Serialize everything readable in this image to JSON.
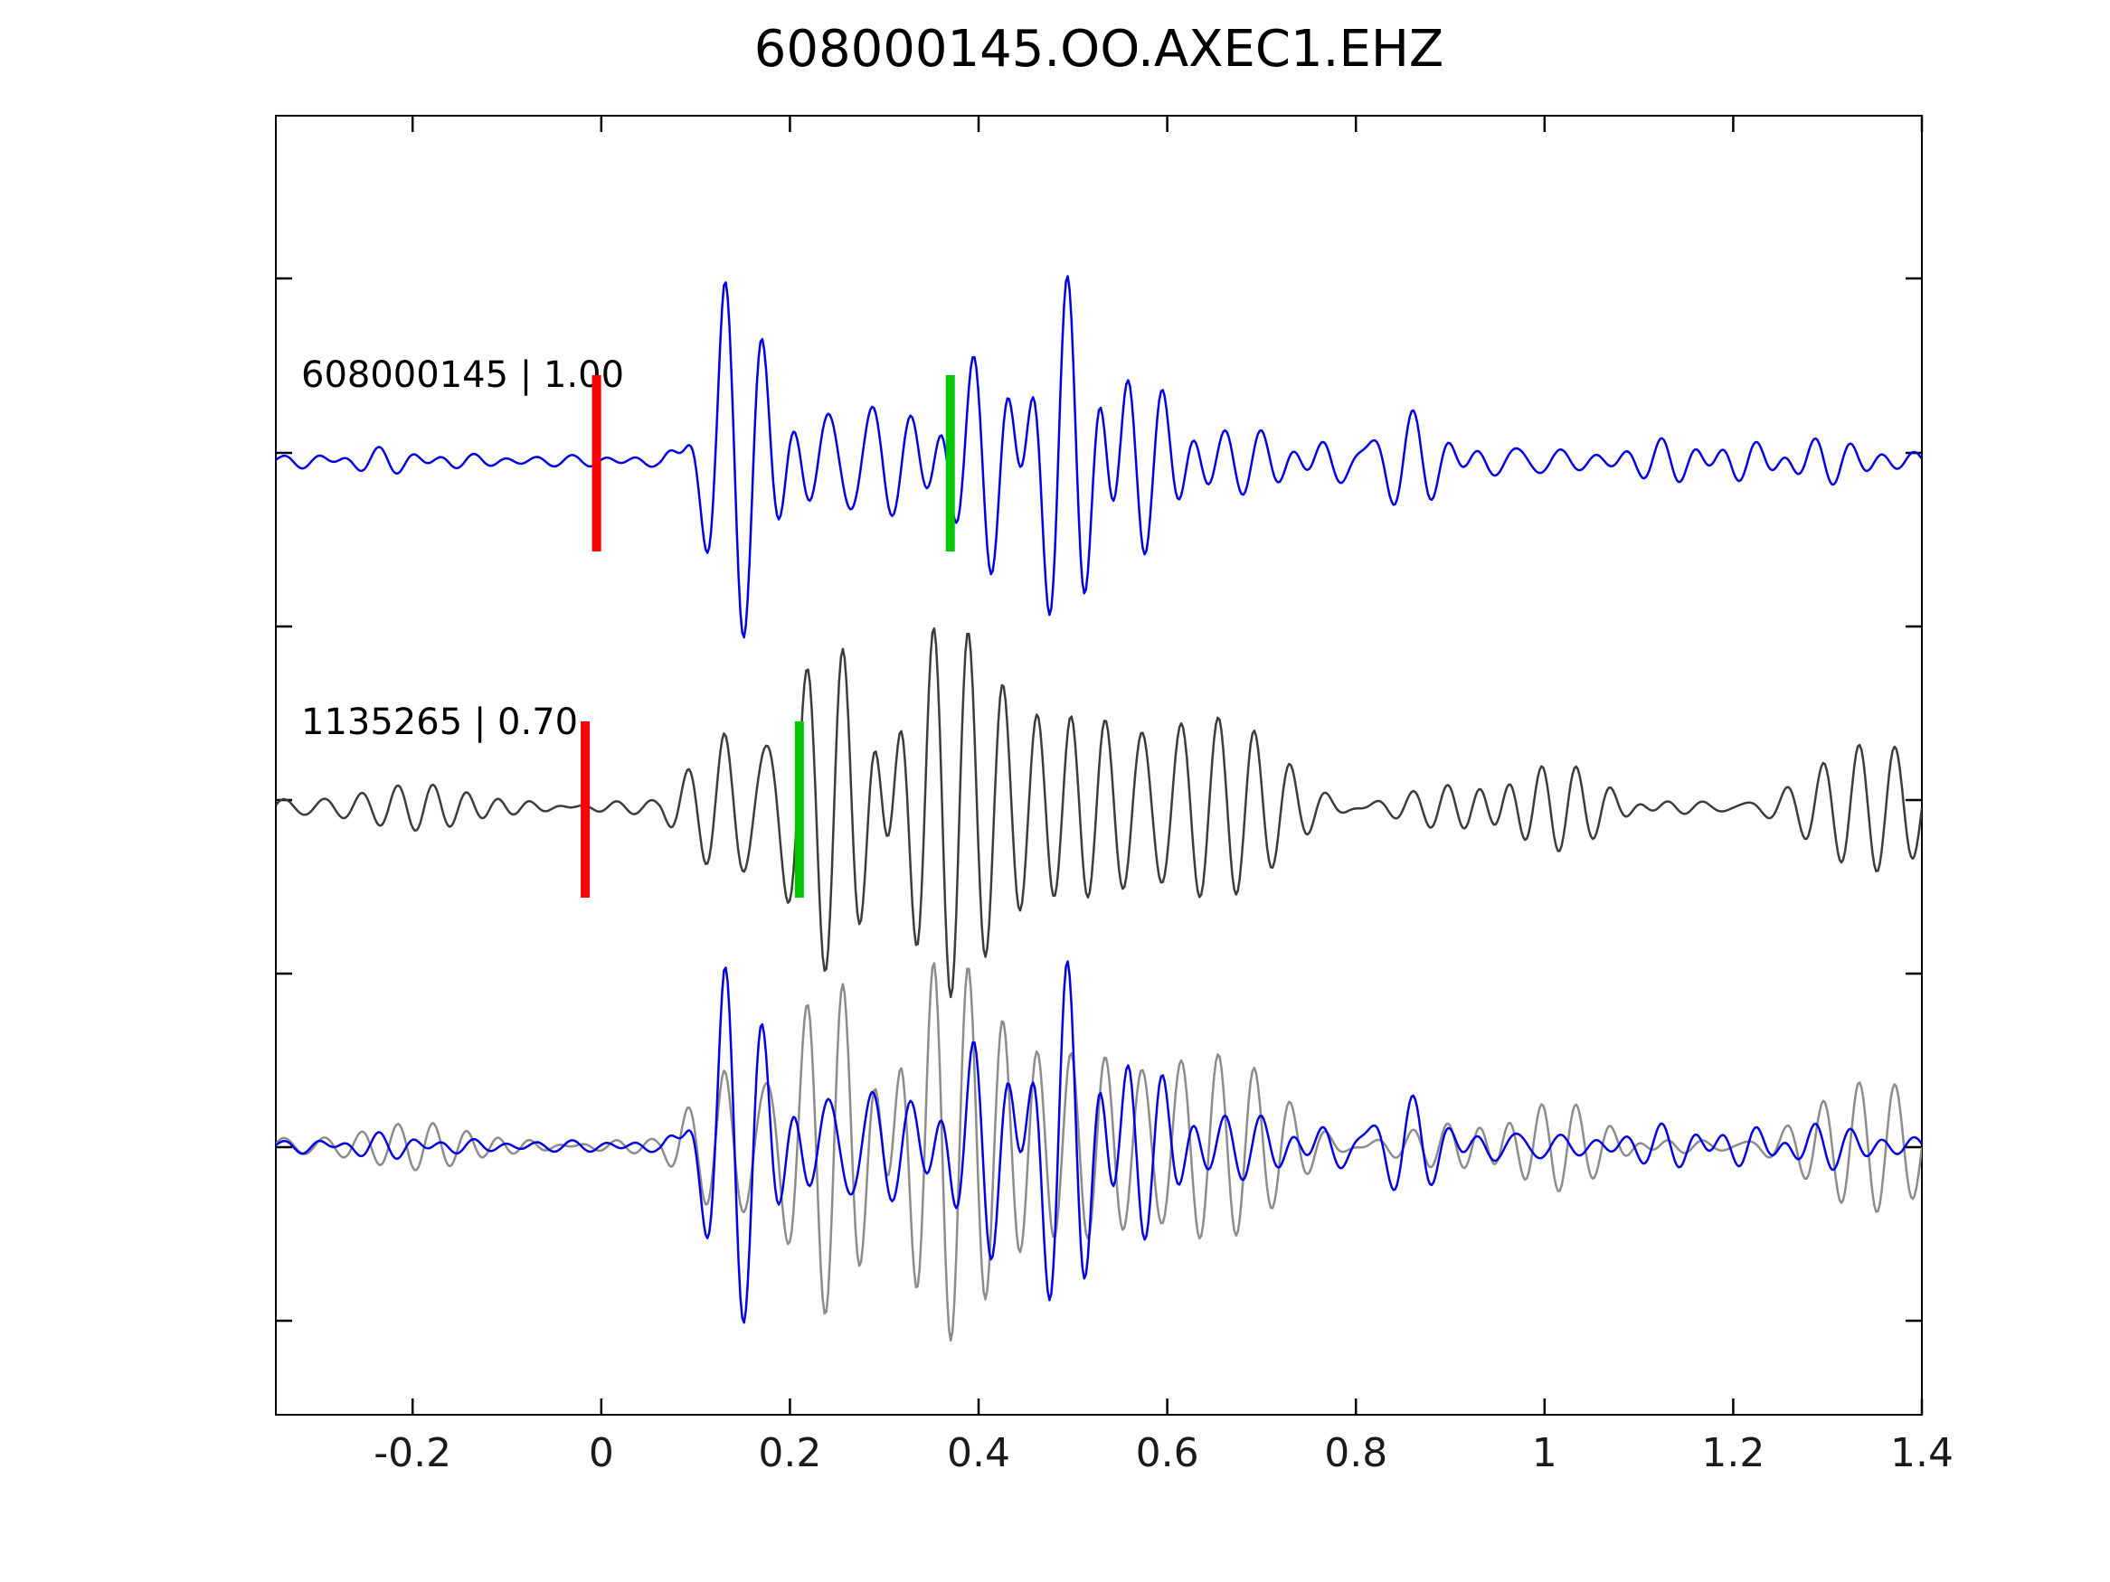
{
  "title": "608000145.OO.AXEC1.EHZ",
  "chart_data": {
    "type": "line",
    "title": "608000145.OO.AXEC1.EHZ",
    "xlabel": "",
    "ylabel": "",
    "xlim": [
      -0.345,
      1.4
    ],
    "x_ticks": [
      -0.2,
      0,
      0.2,
      0.4,
      0.6,
      0.8,
      1,
      1.2,
      1.4
    ],
    "x_tick_labels": [
      "-0.2",
      "0",
      "0.2",
      "0.4",
      "0.6",
      "0.8",
      "1",
      "1.2",
      "1.4"
    ],
    "grid": false,
    "legend": "none",
    "rows": [
      {
        "kind": "template-trace",
        "id": "608000145",
        "correlation": "1.00",
        "label": "608000145 | 1.00",
        "color": "#0000e6",
        "picks": [
          {
            "x": -0.005,
            "color": "#ff0000",
            "name": "red-pick"
          },
          {
            "x": 0.37,
            "color": "#00c800",
            "name": "green-pick"
          }
        ]
      },
      {
        "kind": "detection-trace",
        "id": "1135265",
        "correlation": "0.70",
        "label": "1135265 | 0.70",
        "color": "#3c3c3c",
        "picks": [
          {
            "x": -0.017,
            "color": "#ff0000",
            "name": "red-pick"
          },
          {
            "x": 0.21,
            "color": "#00c800",
            "name": "green-pick"
          }
        ]
      },
      {
        "kind": "overlay-trace",
        "label": "",
        "colors": {
          "template": "#0000e6",
          "detection": "#8c8c8c"
        },
        "picks": []
      }
    ],
    "waveform_synthesis": {
      "n_points": 900,
      "seeds": {
        "template": 20240645,
        "detection": 911335265
      },
      "components": 7,
      "freq_range": [
        14,
        32
      ],
      "envelope": [
        [
          -0.345,
          0.07
        ],
        [
          0,
          0.08
        ],
        [
          0.06,
          0.1
        ],
        [
          0.09,
          0.5
        ],
        [
          0.13,
          1.0
        ],
        [
          0.2,
          0.92
        ],
        [
          0.3,
          1.0
        ],
        [
          0.42,
          0.9
        ],
        [
          0.5,
          0.8
        ],
        [
          0.58,
          0.5
        ],
        [
          0.65,
          0.34
        ],
        [
          0.75,
          0.26
        ],
        [
          0.9,
          0.2
        ],
        [
          1.1,
          0.17
        ],
        [
          1.4,
          0.16
        ]
      ]
    }
  }
}
